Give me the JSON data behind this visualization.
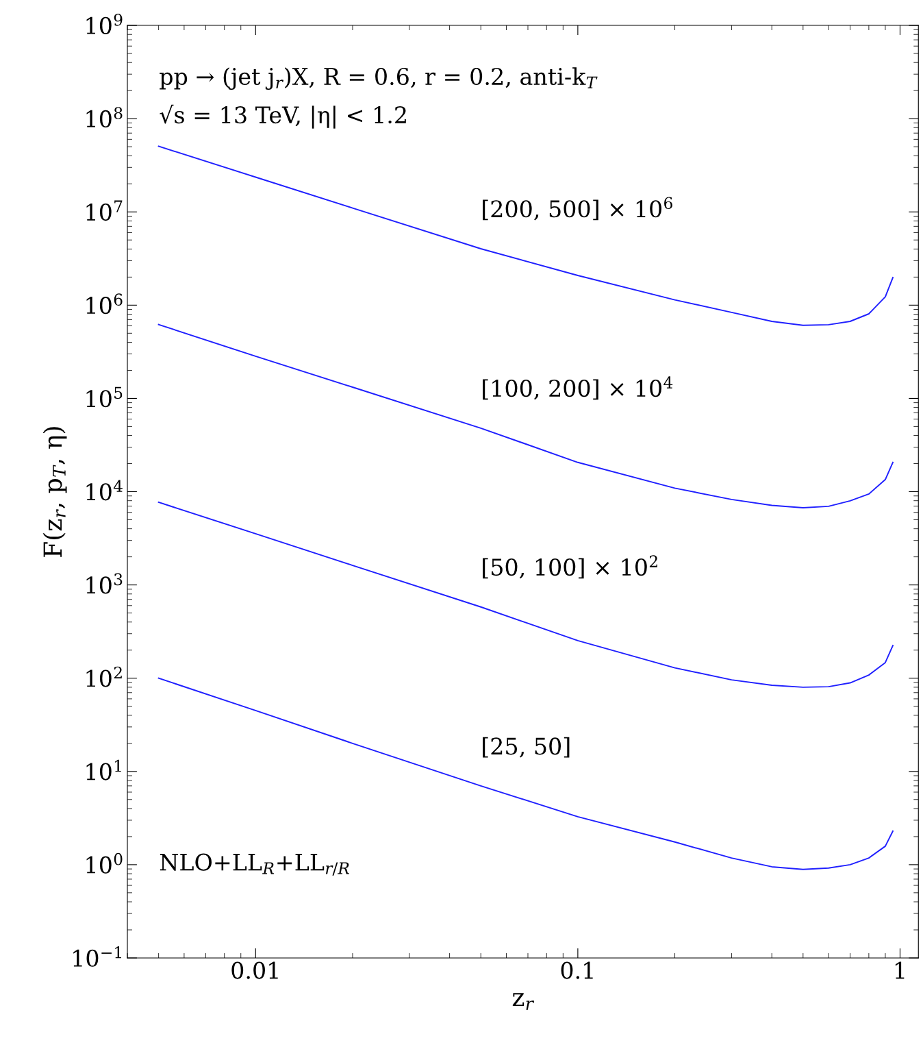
{
  "chart_data": {
    "type": "line",
    "xlabel": "z$_{r}$",
    "ylabel": "F(z$_{r}$, p$_{T}$, η)",
    "x": [
      0.005,
      0.01,
      0.02,
      0.05,
      0.1,
      0.2,
      0.3,
      0.4,
      0.5,
      0.6,
      0.7,
      0.8,
      0.9,
      0.95
    ],
    "series": [
      {
        "name": "[200, 500] × 10$^{6}$",
        "color": "#2020ff",
        "values": [
          50600000.0,
          23600000.0,
          11000000.0,
          4030000.0,
          2080000.0,
          1140000.0,
          836000.0,
          670000.0,
          607000.0,
          617000.0,
          670000.0,
          807000.0,
          1230000.0,
          1980000.0
        ]
      },
      {
        "name": "[100, 200] × 10$^{4}$",
        "color": "#2020ff",
        "values": [
          620000.0,
          283000.0,
          132000.0,
          48000.0,
          20600.0,
          10900.0,
          8250,
          7140,
          6730,
          6970,
          7980,
          9440,
          13500.0,
          20600.0
        ]
      },
      {
        "name": "[50, 100] × 10$^{2}$",
        "color": "#2020ff",
        "values": [
          7700,
          3540,
          1620,
          580,
          253,
          129,
          96,
          84,
          80,
          81,
          89,
          108,
          147,
          224
        ]
      },
      {
        "name": "[25, 50]",
        "color": "#2020ff",
        "values": [
          100,
          45,
          20,
          7.0,
          3.27,
          1.75,
          1.18,
          0.95,
          0.89,
          0.92,
          1.0,
          1.18,
          1.58,
          2.29
        ]
      }
    ],
    "log": "xy",
    "xlim": [
      0.004,
      1.14
    ],
    "ylim": [
      0.1,
      1000000000.0
    ],
    "xticks": [
      0.01,
      0.1,
      1
    ],
    "yticks": [
      {
        "value": 0.1,
        "label": "10$^{−1}$"
      },
      {
        "value": 1,
        "label": "10$^{0}$"
      },
      {
        "value": 10,
        "label": "10$^{1}$"
      },
      {
        "value": 100,
        "label": "10$^{2}$"
      },
      {
        "value": 1000,
        "label": "10$^{3}$"
      },
      {
        "value": 10000,
        "label": "10$^{4}$"
      },
      {
        "value": 100000,
        "label": "10$^{5}$"
      },
      {
        "value": 1000000,
        "label": "10$^{6}$"
      },
      {
        "value": 10000000,
        "label": "10$^{7}$"
      },
      {
        "value": 100000000,
        "label": "10$^{8}$"
      },
      {
        "value": 1000000000,
        "label": "10$^{9}$"
      }
    ],
    "annotations": [
      "pp → (jet j$_{r}$)X, R = 0.6, r = 0.2, anti-k$_{T}$",
      "√s = 13 TeV, |η| < 1.2",
      "NLO+LL$_{R}$+LL$_{r/R}$"
    ],
    "grid": false,
    "legend": false,
    "line_style": "solid",
    "marker": "none"
  }
}
